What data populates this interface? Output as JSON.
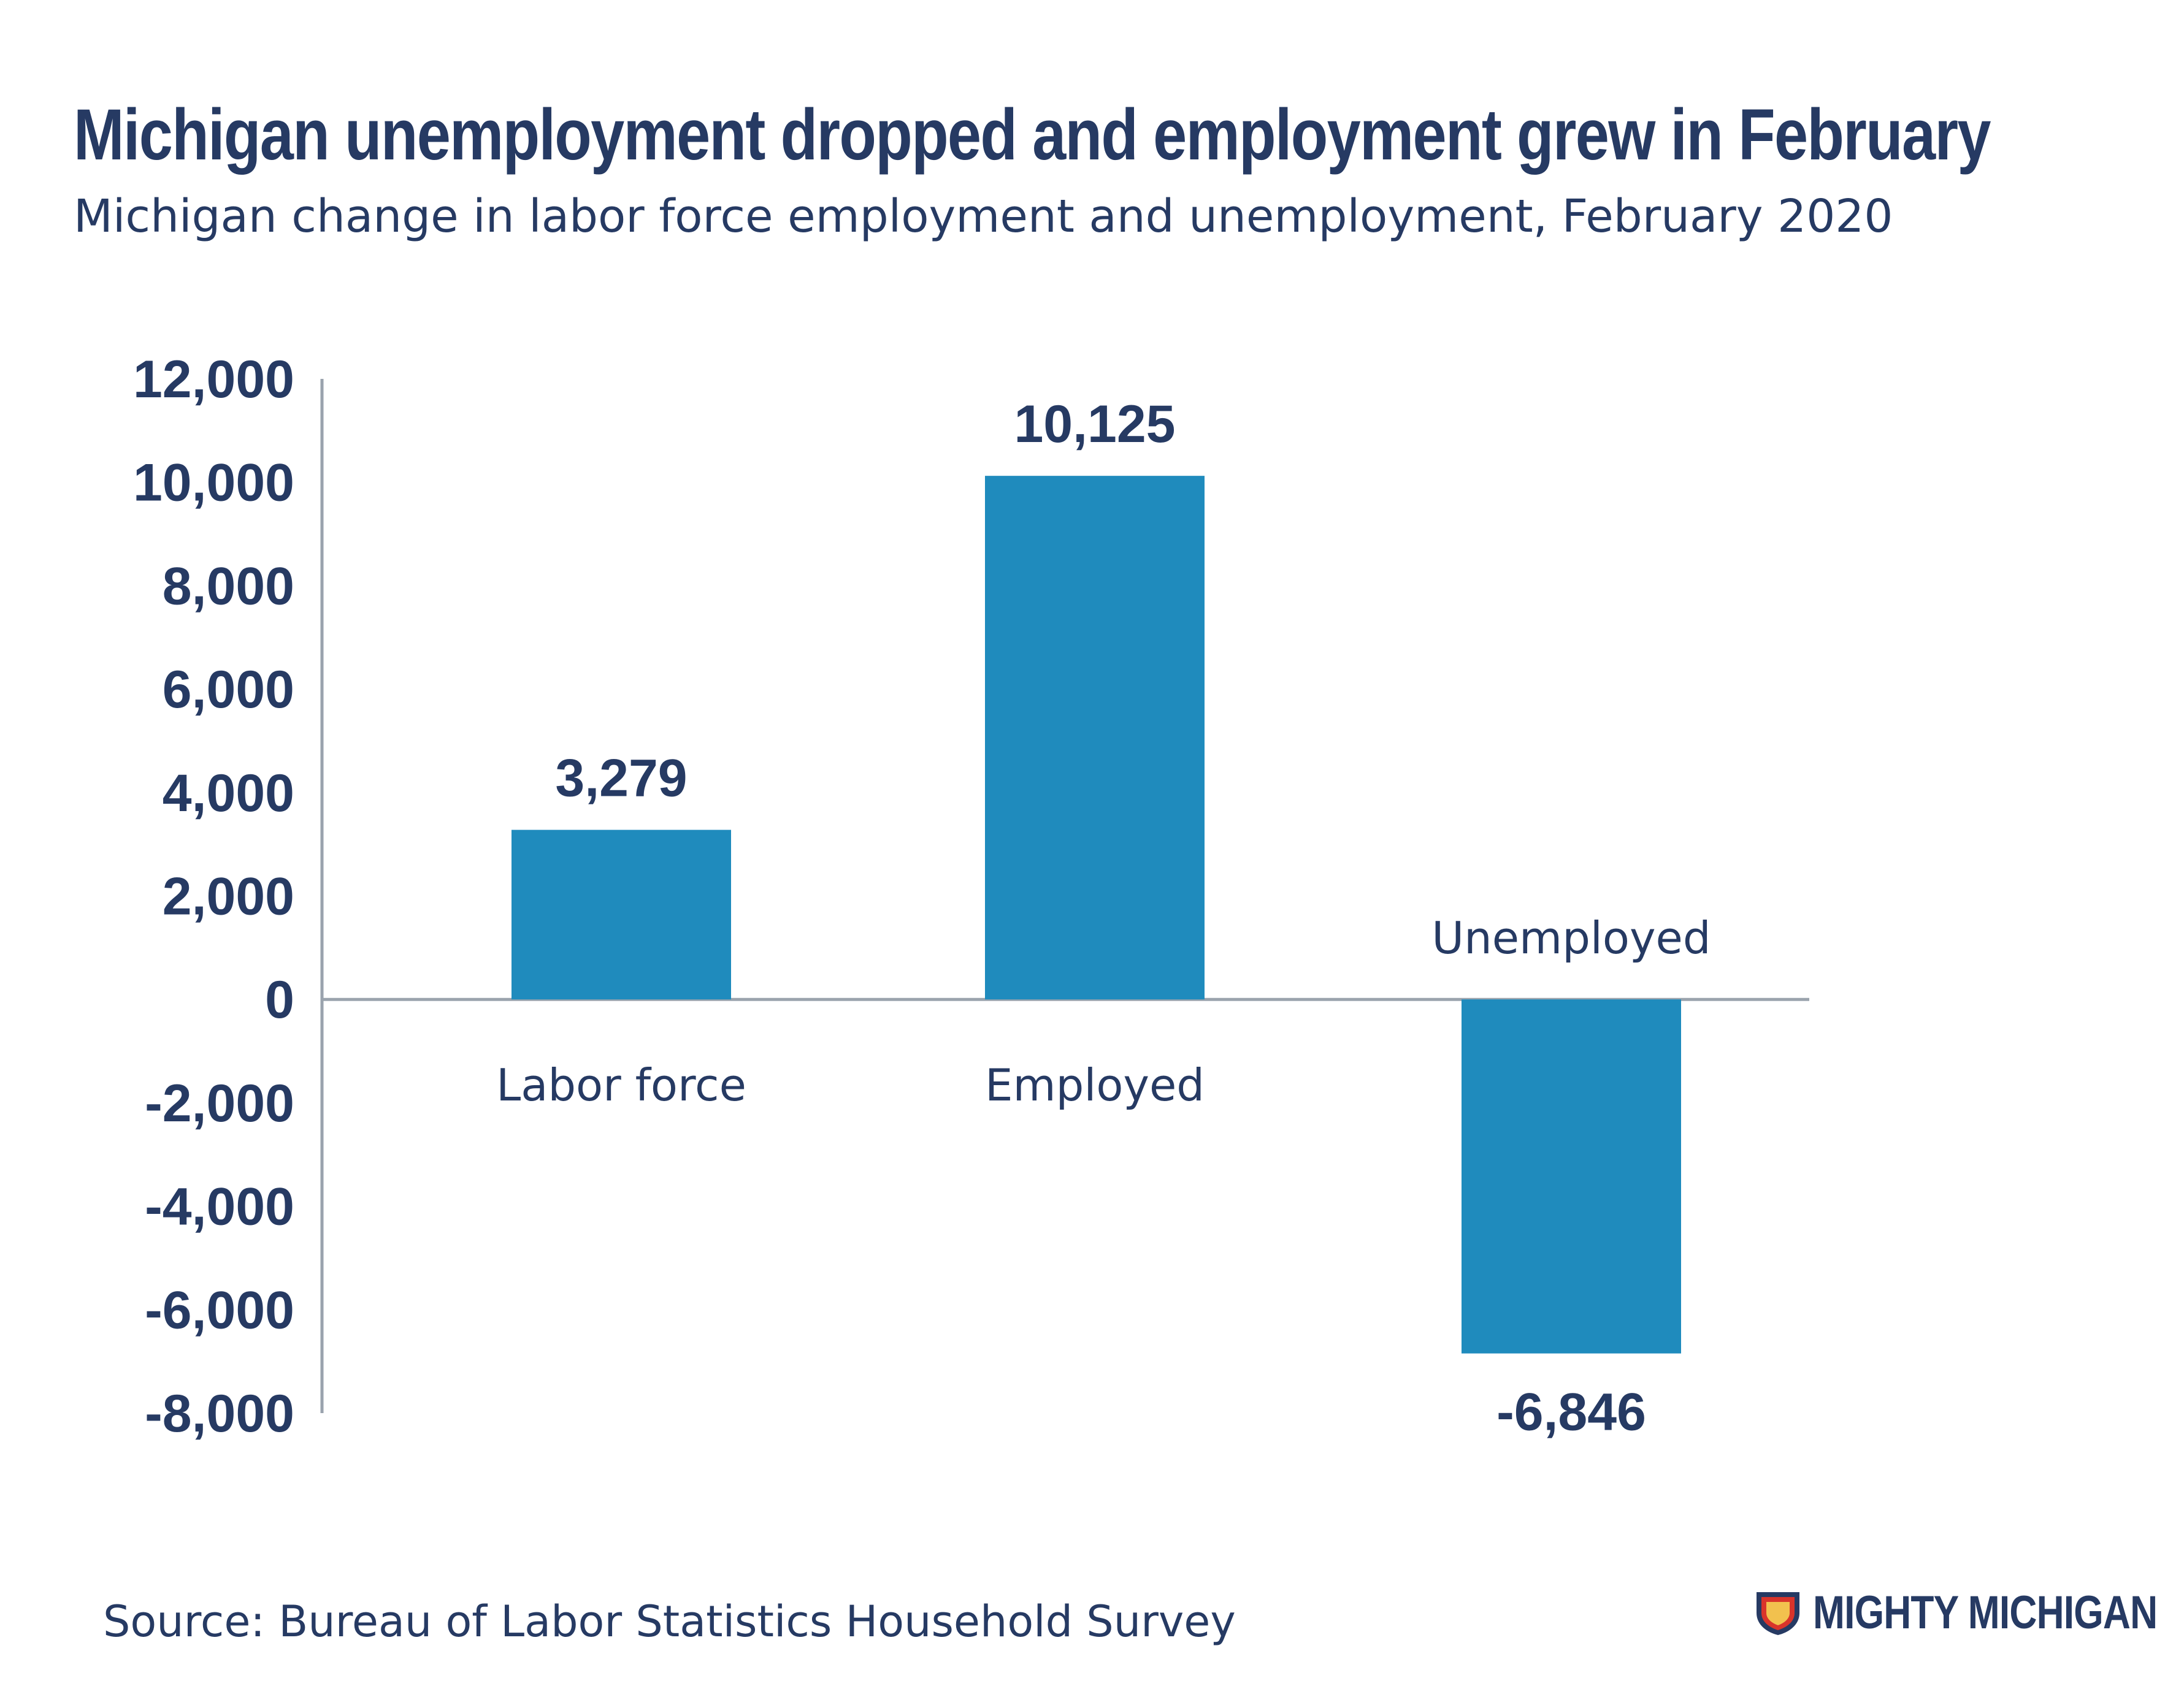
{
  "header": {
    "title": "Michigan unemployment dropped and employment grew in February",
    "subtitle": "Michigan change in labor force employment and unemployment, February 2020"
  },
  "footer": {
    "source": "Source: Bureau of Labor Statistics Household Survey",
    "brand": "MIGHTY MICHIGAN"
  },
  "colors": {
    "bar": "#1f8bbd",
    "text": "#263a63",
    "axis": "#9aa3ad",
    "brand_shield": "#263a63",
    "brand_accent": "#d9342b"
  },
  "chart_data": {
    "type": "bar",
    "categories": [
      "Labor force",
      "Employed",
      "Unemployed"
    ],
    "values": [
      3279,
      10125,
      -6846
    ],
    "value_labels": [
      "3,279",
      "10,125",
      "-6,846"
    ],
    "title": "Michigan unemployment dropped and employment grew in February",
    "subtitle": "Michigan change in labor force employment and unemployment, February 2020",
    "xlabel": "",
    "ylabel": "",
    "ylim": [
      -8000,
      12000
    ],
    "yticks": [
      12000,
      10000,
      8000,
      6000,
      4000,
      2000,
      0,
      -2000,
      -4000,
      -6000,
      -8000
    ],
    "ytick_labels": [
      "12,000",
      "10,000",
      "8,000",
      "6,000",
      "4,000",
      "2,000",
      "0",
      "-2,000",
      "-4,000",
      "-6,000",
      "-8,000"
    ],
    "grid": false,
    "legend": "none"
  }
}
